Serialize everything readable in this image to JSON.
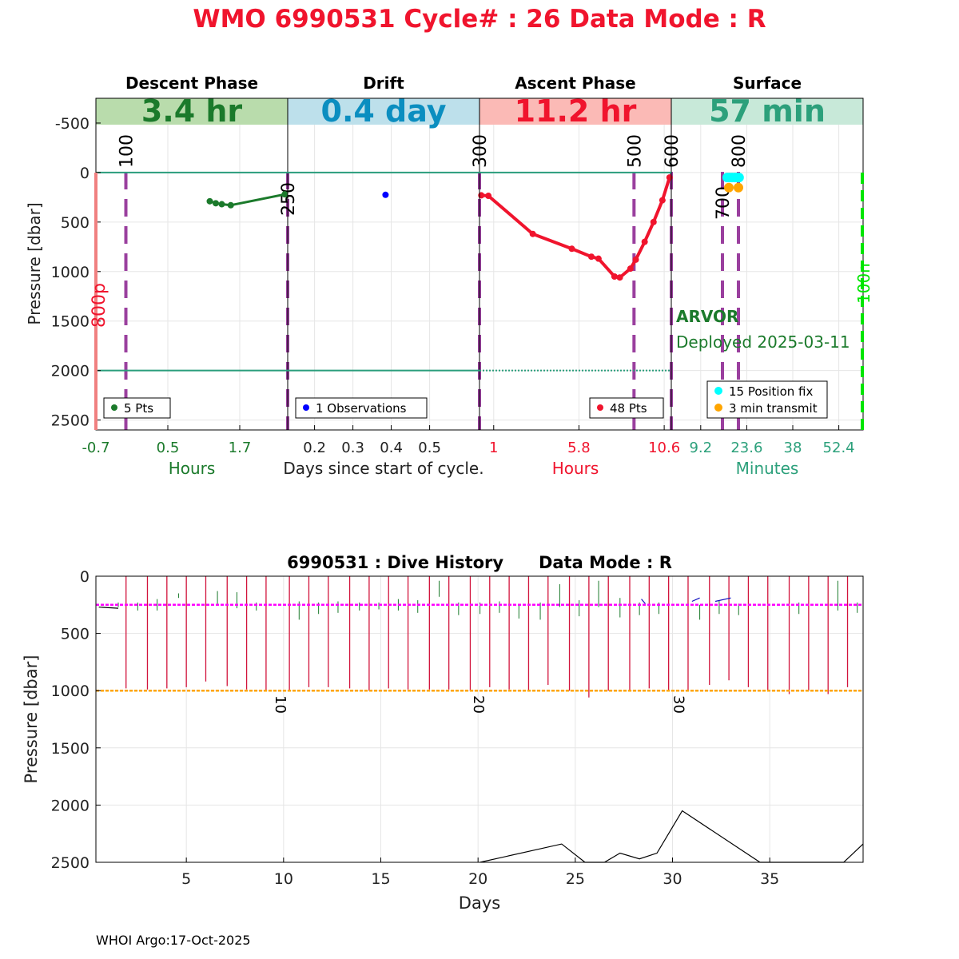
{
  "header": {
    "title": "WMO 6990531   Cycle# : 26   Data Mode : R",
    "title_color": "#f0142d"
  },
  "top_chart": {
    "ylabel": "Pressure [dbar]",
    "xlabel_center": "Days since start of cycle.",
    "y_ticks": [
      -500,
      0,
      500,
      1000,
      1500,
      2000,
      2500
    ],
    "ylim": [
      -750,
      2600
    ],
    "panels": [
      {
        "id": "descent",
        "title": "Descent Phase",
        "duration": "3.4 hr",
        "band_color": "#b9dcac",
        "text_color": "#1b7a2b",
        "unit_label": "Hours",
        "xlim": [
          -0.7,
          2.5
        ],
        "x_ticks": [
          -0.7,
          0.5,
          1.7
        ],
        "legend": "5 Pts",
        "marker_color": "#1b7a2b",
        "series": [
          [
            1.2,
            290
          ],
          [
            1.3,
            310
          ],
          [
            1.4,
            320
          ],
          [
            1.55,
            330
          ],
          [
            2.45,
            220
          ]
        ],
        "vlines": [
          {
            "x": -0.2,
            "label": "100"
          },
          {
            "x": 2.5,
            "label": "250"
          }
        ]
      },
      {
        "id": "drift",
        "title": "Drift",
        "duration": "0.4 day",
        "band_color": "#bde0eb",
        "text_color": "#0b8ec0",
        "unit_label": "",
        "xlim": [
          0.13,
          0.63
        ],
        "x_ticks": [
          0.2,
          0.3,
          0.4,
          0.5
        ],
        "legend": "1 Observations",
        "marker_color": "#0000ff",
        "series": [
          [
            0.385,
            225
          ]
        ],
        "vlines": []
      },
      {
        "id": "ascent",
        "title": "Ascent Phase",
        "duration": "11.2 hr",
        "band_color": "#fbbab6",
        "text_color": "#f0142d",
        "unit_label": "Hours",
        "xlim": [
          0.2,
          11.0
        ],
        "x_ticks": [
          1,
          5.8,
          10.6
        ],
        "legend": "48 Pts",
        "marker_color": "#f0142d",
        "series": [
          [
            0.3,
            230
          ],
          [
            0.7,
            235
          ],
          [
            3.2,
            620
          ],
          [
            5.4,
            770
          ],
          [
            6.5,
            850
          ],
          [
            6.9,
            870
          ],
          [
            7.8,
            1050
          ],
          [
            8.1,
            1060
          ],
          [
            8.7,
            970
          ],
          [
            9.0,
            880
          ],
          [
            9.5,
            700
          ],
          [
            10.0,
            500
          ],
          [
            10.5,
            280
          ],
          [
            10.9,
            50
          ]
        ],
        "vlines": [
          {
            "x": 0.2,
            "label": "300"
          },
          {
            "x": 8.9,
            "label": "500"
          },
          {
            "x": 11.0,
            "label": "600"
          }
        ]
      },
      {
        "id": "surface",
        "title": "Surface",
        "duration": "57 min",
        "band_color": "#c8e9d9",
        "text_color": "#2ca07b",
        "unit_label": "Minutes",
        "xlim": [
          0,
          60
        ],
        "x_ticks": [
          9.2,
          23.6,
          38,
          52.4
        ],
        "legend": [
          "15 Position fix",
          "3 min transmit"
        ],
        "marker_colors": [
          "#00ffff",
          "#ffa500"
        ],
        "position_fix": [
          [
            17.5,
            50
          ],
          [
            18.2,
            50
          ],
          [
            19.0,
            50
          ],
          [
            19.8,
            50
          ],
          [
            20.5,
            50
          ],
          [
            21.2,
            50
          ]
        ],
        "transmit": [
          [
            18.0,
            55
          ],
          [
            21.0,
            55
          ]
        ],
        "vlines": [
          {
            "x": 16,
            "label": "700"
          },
          {
            "x": 21,
            "label": "800"
          }
        ]
      }
    ],
    "left_marker": {
      "label": "800p",
      "color": "#f0142d"
    },
    "right_marker": {
      "label": "100n",
      "color": "#00e600"
    },
    "float_type": "ARVOR",
    "deployed": "Deployed 2025-03-11",
    "float_color": "#1b7a2b"
  },
  "bottom_chart": {
    "title": "6990531 : Dive History      Data Mode : R",
    "ylabel": "Pressure [dbar]",
    "xlabel": "Days",
    "y_ticks": [
      0,
      500,
      1000,
      1500,
      2000,
      2500
    ],
    "x_ticks": [
      5,
      10,
      15,
      20,
      25,
      30,
      35
    ],
    "xlim": [
      0.35,
      39.8
    ],
    "ylim": [
      0,
      2500
    ],
    "drift_line": 250,
    "drift_color": "#ff00ff",
    "profile_line": 1000,
    "profile_color": "#ffa500",
    "cycle_labels": [
      {
        "x": 10.0,
        "label": "10"
      },
      {
        "x": 20.2,
        "label": "20"
      },
      {
        "x": 30.5,
        "label": "30"
      }
    ],
    "profiles": [
      {
        "x": 1.9,
        "top": 0,
        "bottom": 980
      },
      {
        "x": 3.0,
        "top": 0,
        "bottom": 990
      },
      {
        "x": 4.0,
        "top": 0,
        "bottom": 980
      },
      {
        "x": 5.0,
        "top": 0,
        "bottom": 970
      },
      {
        "x": 6.0,
        "top": 0,
        "bottom": 920
      },
      {
        "x": 7.1,
        "top": 0,
        "bottom": 960
      },
      {
        "x": 8.1,
        "top": 0,
        "bottom": 990
      },
      {
        "x": 9.1,
        "top": 0,
        "bottom": 1000
      },
      {
        "x": 10.3,
        "top": 0,
        "bottom": 1000
      },
      {
        "x": 11.3,
        "top": 0,
        "bottom": 970
      },
      {
        "x": 12.3,
        "top": 0,
        "bottom": 970
      },
      {
        "x": 13.4,
        "top": 0,
        "bottom": 980
      },
      {
        "x": 14.4,
        "top": 0,
        "bottom": 1000
      },
      {
        "x": 15.4,
        "top": 0,
        "bottom": 980
      },
      {
        "x": 16.4,
        "top": 0,
        "bottom": 990
      },
      {
        "x": 17.5,
        "top": 0,
        "bottom": 990
      },
      {
        "x": 18.5,
        "top": 0,
        "bottom": 990
      },
      {
        "x": 19.6,
        "top": 0,
        "bottom": 1000
      },
      {
        "x": 20.6,
        "top": 0,
        "bottom": 970
      },
      {
        "x": 21.6,
        "top": 0,
        "bottom": 990
      },
      {
        "x": 22.6,
        "top": 0,
        "bottom": 1000
      },
      {
        "x": 23.6,
        "top": 0,
        "bottom": 950
      },
      {
        "x": 24.7,
        "top": 0,
        "bottom": 1000
      },
      {
        "x": 25.7,
        "top": 0,
        "bottom": 1060
      },
      {
        "x": 26.7,
        "top": 0,
        "bottom": 1000
      },
      {
        "x": 27.8,
        "top": 0,
        "bottom": 1000
      },
      {
        "x": 28.8,
        "top": 0,
        "bottom": 980
      },
      {
        "x": 29.8,
        "top": 0,
        "bottom": 1000
      },
      {
        "x": 30.8,
        "top": 0,
        "bottom": 1000
      },
      {
        "x": 31.9,
        "top": 0,
        "bottom": 950
      },
      {
        "x": 32.9,
        "top": 0,
        "bottom": 910
      },
      {
        "x": 33.9,
        "top": 0,
        "bottom": 970
      },
      {
        "x": 34.9,
        "top": 0,
        "bottom": 1000
      },
      {
        "x": 36.0,
        "top": 0,
        "bottom": 1030
      },
      {
        "x": 37.0,
        "top": 0,
        "bottom": 1000
      },
      {
        "x": 38.0,
        "top": 0,
        "bottom": 1030
      },
      {
        "x": 39.0,
        "top": 0,
        "bottom": 970
      }
    ],
    "green_ticks": [
      {
        "x": 1.5,
        "top": 230,
        "bottom": 270
      },
      {
        "x": 2.5,
        "top": 230,
        "bottom": 300
      },
      {
        "x": 3.5,
        "top": 200,
        "bottom": 300
      },
      {
        "x": 4.6,
        "top": 150,
        "bottom": 190
      },
      {
        "x": 6.6,
        "top": 130,
        "bottom": 250
      },
      {
        "x": 7.6,
        "top": 140,
        "bottom": 280
      },
      {
        "x": 8.6,
        "top": 230,
        "bottom": 300
      },
      {
        "x": 10.8,
        "top": 220,
        "bottom": 380
      },
      {
        "x": 11.8,
        "top": 230,
        "bottom": 330
      },
      {
        "x": 12.8,
        "top": 220,
        "bottom": 320
      },
      {
        "x": 13.9,
        "top": 230,
        "bottom": 300
      },
      {
        "x": 14.9,
        "top": 230,
        "bottom": 290
      },
      {
        "x": 15.9,
        "top": 200,
        "bottom": 300
      },
      {
        "x": 16.9,
        "top": 210,
        "bottom": 320
      },
      {
        "x": 18.0,
        "top": 40,
        "bottom": 180
      },
      {
        "x": 19.0,
        "top": 230,
        "bottom": 340
      },
      {
        "x": 20.1,
        "top": 230,
        "bottom": 330
      },
      {
        "x": 21.1,
        "top": 220,
        "bottom": 320
      },
      {
        "x": 22.1,
        "top": 250,
        "bottom": 370
      },
      {
        "x": 23.2,
        "top": 230,
        "bottom": 380
      },
      {
        "x": 24.2,
        "top": 70,
        "bottom": 270
      },
      {
        "x": 25.2,
        "top": 210,
        "bottom": 350
      },
      {
        "x": 26.2,
        "top": 40,
        "bottom": 270
      },
      {
        "x": 27.3,
        "top": 190,
        "bottom": 360
      },
      {
        "x": 28.3,
        "top": 230,
        "bottom": 340
      },
      {
        "x": 29.3,
        "top": 230,
        "bottom": 330
      },
      {
        "x": 31.4,
        "top": 250,
        "bottom": 380
      },
      {
        "x": 32.4,
        "top": 210,
        "bottom": 330
      },
      {
        "x": 33.4,
        "top": 240,
        "bottom": 340
      },
      {
        "x": 36.5,
        "top": 230,
        "bottom": 330
      },
      {
        "x": 38.5,
        "top": 40,
        "bottom": 300
      },
      {
        "x": 39.5,
        "top": 230,
        "bottom": 320
      }
    ],
    "bottom_depth": [
      [
        20.1,
        2500
      ],
      [
        24.3,
        2340
      ],
      [
        25.5,
        2500
      ],
      [
        26.5,
        2500
      ],
      [
        27.3,
        2420
      ],
      [
        28.3,
        2470
      ],
      [
        29.2,
        2420
      ],
      [
        30.5,
        2050
      ],
      [
        34.5,
        2500
      ],
      [
        38.8,
        2500
      ],
      [
        39.8,
        2340
      ]
    ],
    "drift_segments": [
      [
        [
          0.5,
          270
        ],
        [
          1.5,
          280
        ]
      ],
      [
        [
          28.4,
          200
        ],
        [
          28.6,
          240
        ]
      ],
      [
        [
          31.0,
          220
        ],
        [
          31.4,
          190
        ]
      ],
      [
        [
          32.2,
          220
        ],
        [
          33.0,
          190
        ]
      ]
    ]
  },
  "footer": {
    "text": "WHOI Argo:17-Oct-2025"
  }
}
